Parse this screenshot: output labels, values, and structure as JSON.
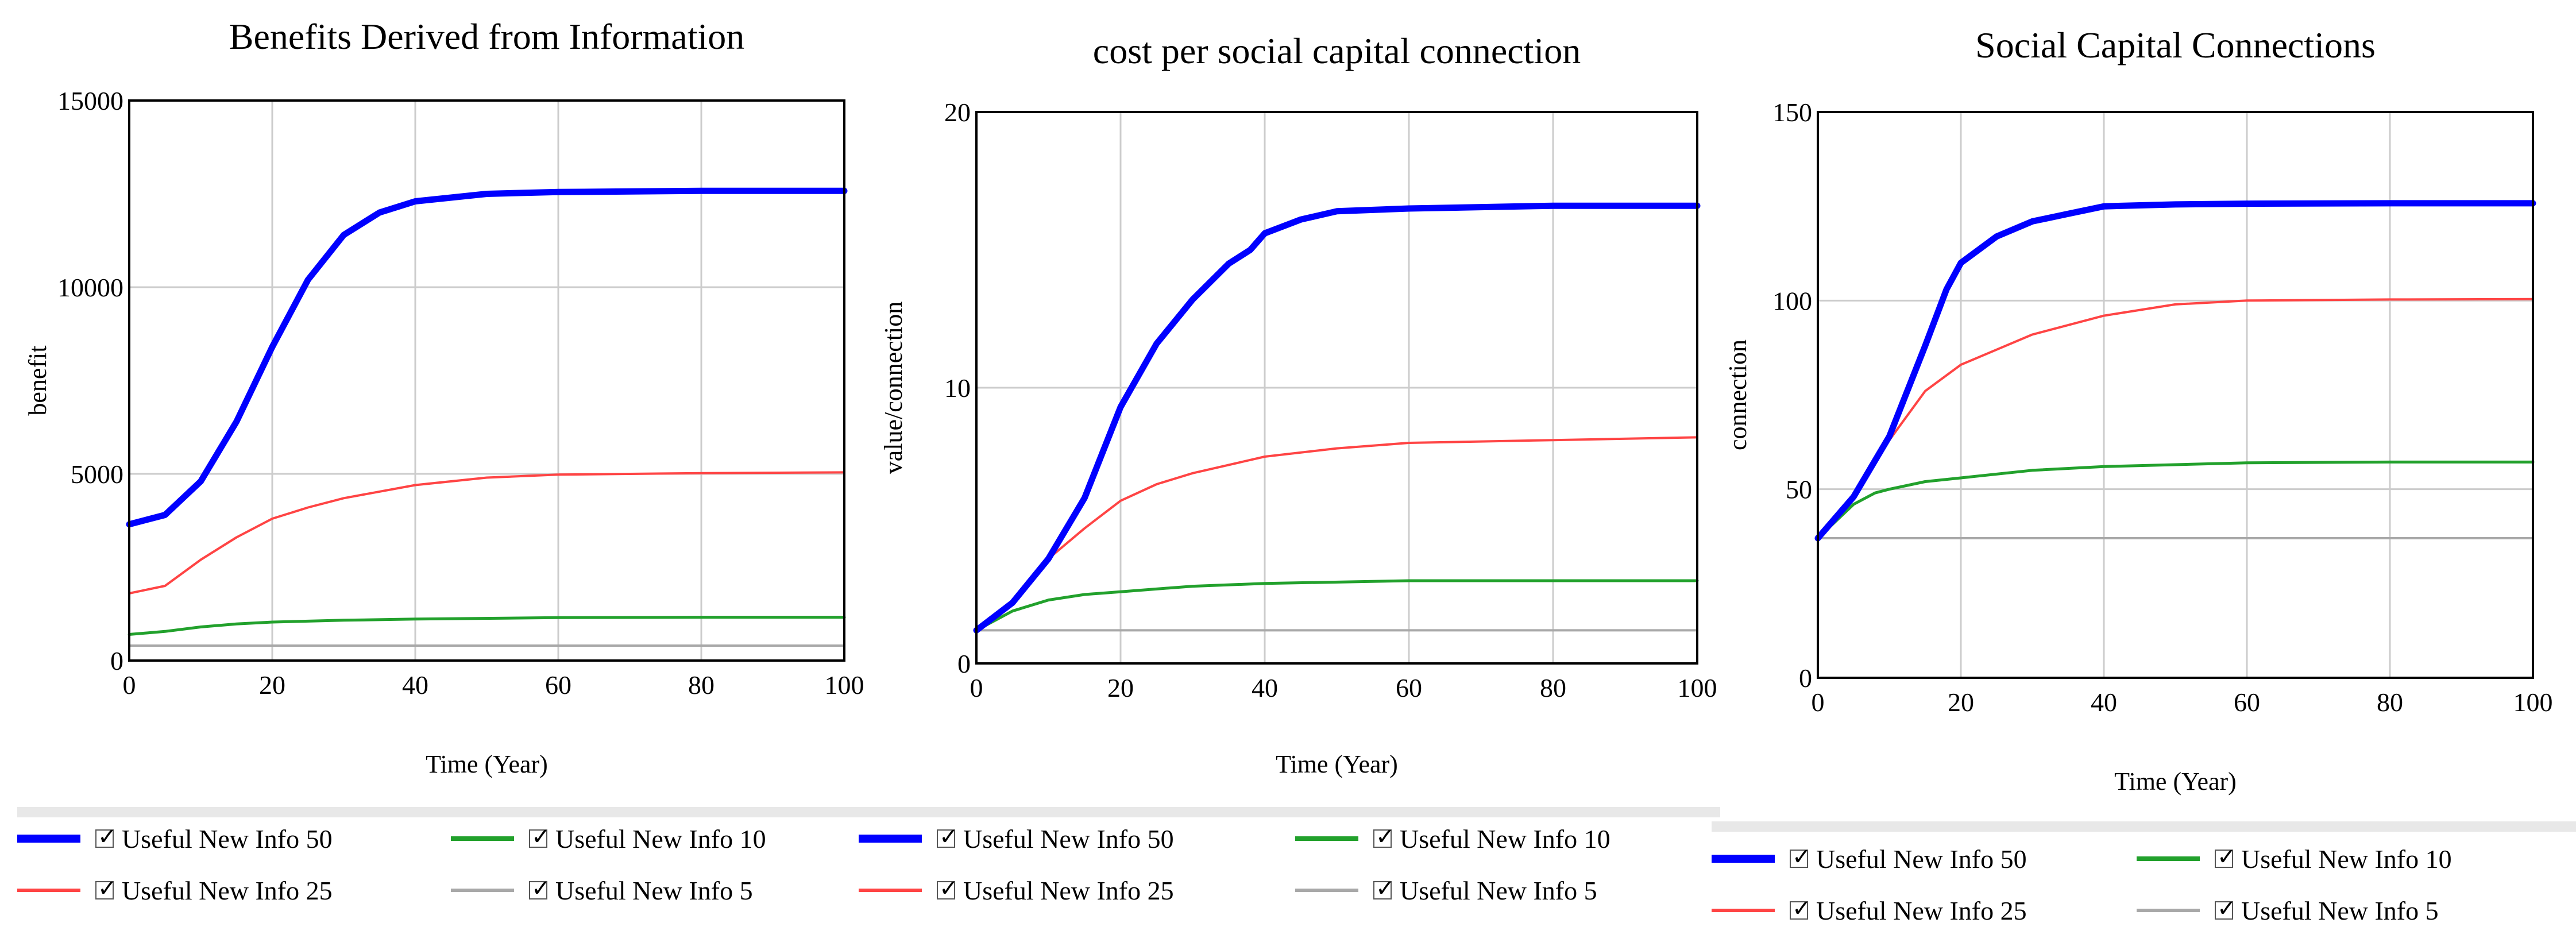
{
  "colors": {
    "info50": "#0000ff",
    "info25": "#ff4444",
    "info10": "#22a12c",
    "info5": "#a8a8a8",
    "grid": "#cccccc",
    "frame": "#000000"
  },
  "legend": [
    {
      "label": "Useful New Info 50",
      "checked": true
    },
    {
      "label": "Useful New Info 10",
      "checked": true
    },
    {
      "label": "Useful New Info 25",
      "checked": true
    },
    {
      "label": "Useful New Info 5",
      "checked": true
    }
  ],
  "chart_data": [
    {
      "type": "line",
      "title": "Benefits Derived from Information",
      "xlabel": "Time (Year)",
      "ylabel": "benefit",
      "xlim": [
        0,
        100
      ],
      "ylim": [
        0,
        15000
      ],
      "xticks": [
        "0",
        "20",
        "40",
        "60",
        "80",
        "100"
      ],
      "yticks": [
        "0",
        "5000",
        "10000",
        "15000"
      ],
      "series": [
        {
          "name": "Useful New Info 50",
          "x": [
            0,
            5,
            10,
            15,
            20,
            25,
            30,
            35,
            40,
            50,
            60,
            80,
            100
          ],
          "values": [
            3650,
            3900,
            4800,
            6400,
            8400,
            10200,
            11400,
            12000,
            12300,
            12500,
            12550,
            12580,
            12580
          ]
        },
        {
          "name": "Useful New Info 25",
          "x": [
            0,
            5,
            10,
            15,
            20,
            25,
            30,
            40,
            50,
            60,
            80,
            100
          ],
          "values": [
            1800,
            2000,
            2700,
            3300,
            3800,
            4100,
            4350,
            4700,
            4900,
            4980,
            5020,
            5040
          ]
        },
        {
          "name": "Useful New Info 10",
          "x": [
            0,
            5,
            10,
            15,
            20,
            30,
            40,
            60,
            80,
            100
          ],
          "values": [
            700,
            780,
            900,
            980,
            1030,
            1080,
            1110,
            1150,
            1160,
            1160
          ]
        },
        {
          "name": "Useful New Info 5",
          "x": [
            0,
            100
          ],
          "values": [
            400,
            400
          ]
        }
      ]
    },
    {
      "type": "line",
      "title": "cost per social capital connection",
      "xlabel": "Time (Year)",
      "ylabel": "value/connection",
      "xlim": [
        0,
        100
      ],
      "ylim": [
        0,
        20
      ],
      "xticks": [
        "0",
        "20",
        "40",
        "60",
        "80",
        "100"
      ],
      "yticks": [
        "0",
        "10",
        "20"
      ],
      "series": [
        {
          "name": "Useful New Info 50",
          "x": [
            0,
            5,
            10,
            15,
            20,
            25,
            30,
            35,
            38,
            40,
            45,
            50,
            60,
            80,
            100
          ],
          "values": [
            1.2,
            2.2,
            3.8,
            6.0,
            9.3,
            11.6,
            13.2,
            14.5,
            15.0,
            15.6,
            16.1,
            16.4,
            16.5,
            16.6,
            16.6
          ]
        },
        {
          "name": "Useful New Info 25",
          "x": [
            0,
            5,
            10,
            15,
            20,
            25,
            30,
            40,
            50,
            60,
            80,
            100
          ],
          "values": [
            1.2,
            2.2,
            3.8,
            4.9,
            5.9,
            6.5,
            6.9,
            7.5,
            7.8,
            8.0,
            8.1,
            8.2
          ]
        },
        {
          "name": "Useful New Info 10",
          "x": [
            0,
            5,
            10,
            15,
            20,
            30,
            40,
            60,
            80,
            100
          ],
          "values": [
            1.2,
            1.9,
            2.3,
            2.5,
            2.6,
            2.8,
            2.9,
            3.0,
            3.0,
            3.0
          ]
        },
        {
          "name": "Useful New Info 5",
          "x": [
            0,
            100
          ],
          "values": [
            1.2,
            1.2
          ]
        }
      ]
    },
    {
      "type": "line",
      "title": "Social Capital Connections",
      "xlabel": "Time (Year)",
      "ylabel": "connection",
      "xlim": [
        0,
        100
      ],
      "ylim": [
        0,
        150
      ],
      "xticks": [
        "0",
        "20",
        "40",
        "60",
        "80",
        "100"
      ],
      "yticks": [
        "0",
        "50",
        "100",
        "150"
      ],
      "series": [
        {
          "name": "Useful New Info 50",
          "x": [
            0,
            5,
            10,
            15,
            18,
            20,
            25,
            30,
            35,
            40,
            50,
            60,
            80,
            100
          ],
          "values": [
            37,
            48,
            64,
            88,
            103,
            110,
            117,
            121,
            123,
            125,
            125.5,
            125.7,
            125.8,
            125.8
          ]
        },
        {
          "name": "Useful New Info 25",
          "x": [
            0,
            5,
            10,
            15,
            20,
            25,
            30,
            40,
            50,
            60,
            80,
            100
          ],
          "values": [
            37,
            48,
            63,
            76,
            83,
            87,
            91,
            96,
            99,
            100,
            100.3,
            100.4
          ]
        },
        {
          "name": "Useful New Info 10",
          "x": [
            0,
            5,
            8,
            10,
            15,
            20,
            30,
            40,
            60,
            80,
            100
          ],
          "values": [
            37,
            46,
            49,
            50,
            52,
            53,
            55,
            56,
            57,
            57.2,
            57.2
          ]
        },
        {
          "name": "Useful New Info 5",
          "x": [
            0,
            100
          ],
          "values": [
            37,
            37
          ]
        }
      ]
    }
  ]
}
